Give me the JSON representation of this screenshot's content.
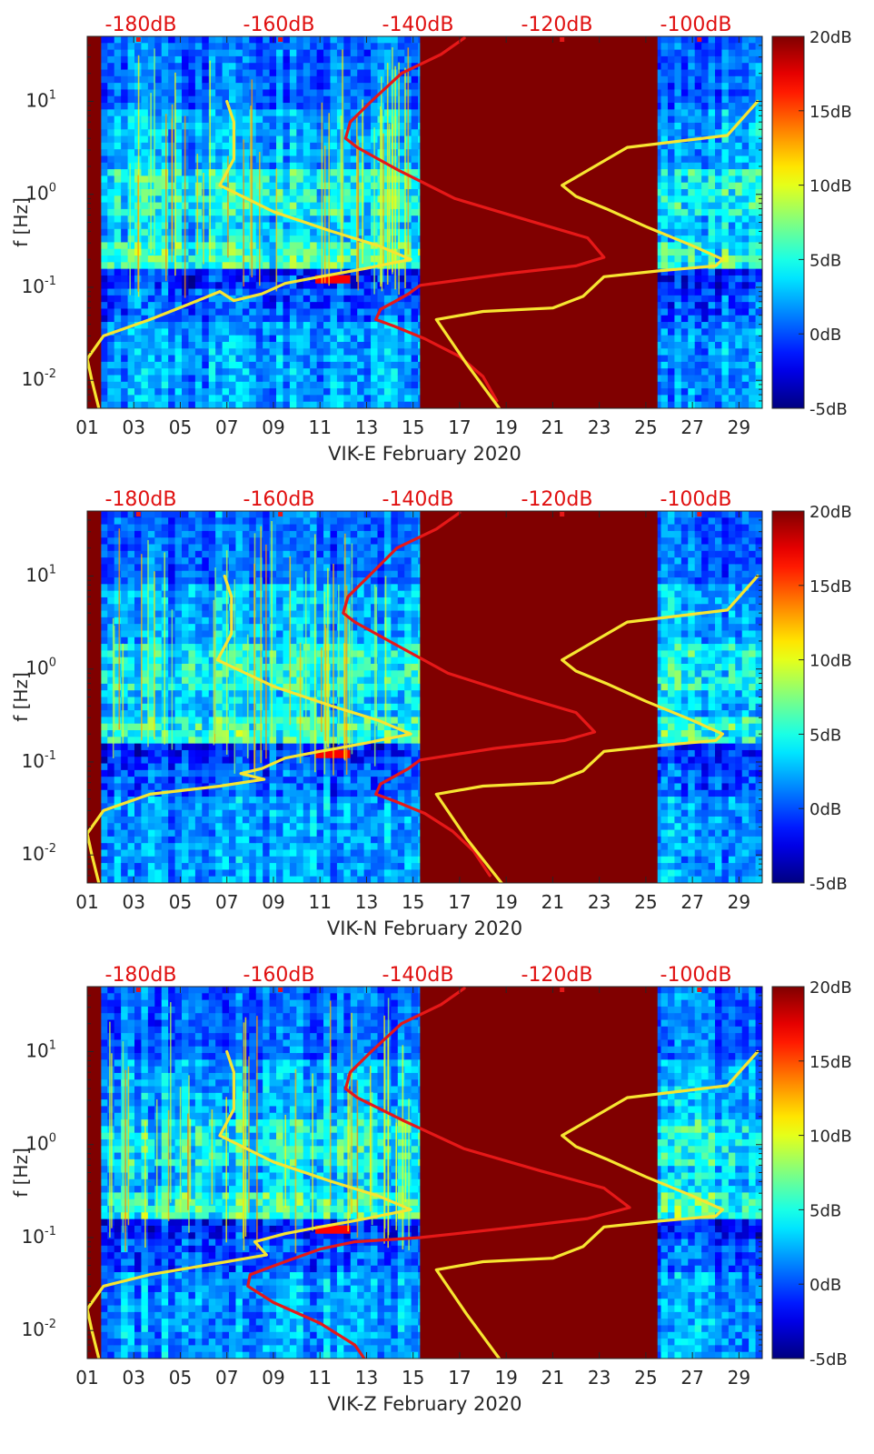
{
  "figure": {
    "panel_count": 3
  },
  "colors": {
    "spectrogram_colormap": "jet",
    "yellow_curve": "#f7e531",
    "red_curve": "#e61818",
    "top_axis_text": "#e01010",
    "saturated_block": "#800000",
    "axis": "#262626"
  },
  "chart_data": [
    {
      "type": "heatmap",
      "title": "",
      "xlabel": "VIK-E February 2020",
      "ylabel": "f [Hz]",
      "x_tick_labels": [
        "01",
        "03",
        "05",
        "07",
        "09",
        "11",
        "13",
        "15",
        "17",
        "19",
        "21",
        "23",
        "25",
        "27",
        "29"
      ],
      "x_tick_days": [
        1,
        3,
        5,
        7,
        9,
        11,
        13,
        15,
        17,
        19,
        21,
        23,
        25,
        27,
        29
      ],
      "xlim": [
        1,
        30
      ],
      "yscale": "log",
      "ylim": [
        0.005,
        50
      ],
      "y_tick_labels": [
        "10^-2",
        "10^-1",
        "10^0",
        "10^1"
      ],
      "y_tick_values": [
        0.01,
        0.1,
        1,
        10
      ],
      "top_axis_labels": [
        "-180dB",
        "-160dB",
        "-140dB",
        "-120dB",
        "-100dB"
      ],
      "colorbar": {
        "labels": [
          "20dB",
          "15dB",
          "10dB",
          "5dB",
          "0dB",
          "-5dB"
        ],
        "values": [
          20,
          15,
          10,
          5,
          0,
          -5
        ],
        "range": [
          -5,
          20
        ],
        "colormap": "jet"
      },
      "saturated_intervals": [
        [
          1.0,
          1.6
        ],
        [
          15.3,
          25.5
        ]
      ],
      "overlay_series": [
        {
          "color": "yellow",
          "points": [
            [
              7.0,
              10
            ],
            [
              7.3,
              6
            ],
            [
              7.3,
              2.4
            ],
            [
              6.7,
              1.25
            ],
            [
              9.0,
              0.65
            ],
            [
              11.5,
              0.4
            ],
            [
              13.5,
              0.28
            ],
            [
              14.9,
              0.2
            ],
            [
              13.0,
              0.16
            ],
            [
              11.0,
              0.13
            ],
            [
              9.5,
              0.11
            ],
            [
              8.5,
              0.085
            ],
            [
              7.3,
              0.072
            ],
            [
              6.7,
              0.09
            ],
            [
              5.5,
              0.068
            ],
            [
              3.7,
              0.045
            ],
            [
              1.7,
              0.03
            ],
            [
              1.0,
              0.017
            ],
            [
              1.2,
              0.01
            ],
            [
              1.5,
              0.005
            ]
          ]
        },
        {
          "color": "red",
          "points": [
            [
              17.2,
              48
            ],
            [
              16.2,
              32
            ],
            [
              14.5,
              20
            ],
            [
              13.2,
              10
            ],
            [
              12.3,
              6
            ],
            [
              12.1,
              4
            ],
            [
              12.6,
              3.2
            ],
            [
              14.4,
              1.8
            ],
            [
              16.8,
              0.9
            ],
            [
              20.0,
              0.52
            ],
            [
              22.5,
              0.34
            ],
            [
              23.2,
              0.21
            ],
            [
              22.0,
              0.17
            ],
            [
              19.0,
              0.14
            ],
            [
              15.3,
              0.105
            ],
            [
              14.8,
              0.085
            ],
            [
              14.2,
              0.07
            ],
            [
              13.6,
              0.058
            ],
            [
              13.4,
              0.045
            ],
            [
              14.2,
              0.038
            ],
            [
              15.5,
              0.028
            ],
            [
              17.0,
              0.018
            ],
            [
              18.0,
              0.011
            ],
            [
              18.6,
              0.006
            ]
          ]
        },
        {
          "color": "yellow",
          "points": [
            [
              18.7,
              0.005
            ],
            [
              17.3,
              0.015
            ],
            [
              16.0,
              0.045
            ],
            [
              18.0,
              0.055
            ],
            [
              21.0,
              0.06
            ],
            [
              22.3,
              0.08
            ],
            [
              23.2,
              0.13
            ],
            [
              25.5,
              0.15
            ],
            [
              28.0,
              0.17
            ],
            [
              28.3,
              0.2
            ],
            [
              27.0,
              0.28
            ],
            [
              25.0,
              0.45
            ],
            [
              23.3,
              0.7
            ],
            [
              22.0,
              0.95
            ],
            [
              21.4,
              1.25
            ],
            [
              24.2,
              3.2
            ],
            [
              28.5,
              4.3
            ],
            [
              29.8,
              10
            ]
          ]
        }
      ]
    },
    {
      "type": "heatmap",
      "title": "",
      "xlabel": "VIK-N February 2020",
      "ylabel": "f [Hz]",
      "x_tick_labels": [
        "01",
        "03",
        "05",
        "07",
        "09",
        "11",
        "13",
        "15",
        "17",
        "19",
        "21",
        "23",
        "25",
        "27",
        "29"
      ],
      "x_tick_days": [
        1,
        3,
        5,
        7,
        9,
        11,
        13,
        15,
        17,
        19,
        21,
        23,
        25,
        27,
        29
      ],
      "xlim": [
        1,
        30
      ],
      "yscale": "log",
      "ylim": [
        0.005,
        50
      ],
      "y_tick_labels": [
        "10^-2",
        "10^-1",
        "10^0",
        "10^1"
      ],
      "y_tick_values": [
        0.01,
        0.1,
        1,
        10
      ],
      "top_axis_labels": [
        "-180dB",
        "-160dB",
        "-140dB",
        "-120dB",
        "-100dB"
      ],
      "colorbar": {
        "labels": [
          "20dB",
          "15dB",
          "10dB",
          "5dB",
          "0dB",
          "-5dB"
        ],
        "values": [
          20,
          15,
          10,
          5,
          0,
          -5
        ],
        "range": [
          -5,
          20
        ],
        "colormap": "jet"
      },
      "saturated_intervals": [
        [
          1.0,
          1.6
        ],
        [
          15.3,
          25.5
        ]
      ],
      "overlay_series": [
        {
          "color": "yellow",
          "points": [
            [
              6.9,
              10
            ],
            [
              7.2,
              6
            ],
            [
              7.2,
              2.4
            ],
            [
              6.6,
              1.25
            ],
            [
              9.0,
              0.65
            ],
            [
              11.5,
              0.4
            ],
            [
              13.5,
              0.28
            ],
            [
              14.9,
              0.2
            ],
            [
              13.0,
              0.16
            ],
            [
              11.0,
              0.13
            ],
            [
              9.5,
              0.11
            ],
            [
              8.5,
              0.085
            ],
            [
              7.6,
              0.075
            ],
            [
              8.6,
              0.065
            ],
            [
              6.7,
              0.055
            ],
            [
              3.7,
              0.045
            ],
            [
              1.7,
              0.03
            ],
            [
              1.0,
              0.017
            ],
            [
              1.2,
              0.01
            ],
            [
              1.5,
              0.005
            ]
          ]
        },
        {
          "color": "red",
          "points": [
            [
              17.0,
              48
            ],
            [
              16.0,
              32
            ],
            [
              14.3,
              20
            ],
            [
              13.1,
              10
            ],
            [
              12.2,
              6
            ],
            [
              12.0,
              4
            ],
            [
              12.5,
              3.2
            ],
            [
              14.3,
              1.8
            ],
            [
              16.5,
              0.9
            ],
            [
              19.5,
              0.52
            ],
            [
              22.0,
              0.34
            ],
            [
              22.8,
              0.21
            ],
            [
              21.5,
              0.17
            ],
            [
              18.5,
              0.14
            ],
            [
              15.3,
              0.105
            ],
            [
              14.8,
              0.085
            ],
            [
              14.2,
              0.07
            ],
            [
              13.6,
              0.058
            ],
            [
              13.4,
              0.045
            ],
            [
              14.2,
              0.038
            ],
            [
              15.5,
              0.028
            ],
            [
              16.7,
              0.018
            ],
            [
              17.6,
              0.011
            ],
            [
              18.3,
              0.006
            ]
          ]
        },
        {
          "color": "yellow",
          "points": [
            [
              18.8,
              0.005
            ],
            [
              17.3,
              0.015
            ],
            [
              16.0,
              0.045
            ],
            [
              18.0,
              0.055
            ],
            [
              21.0,
              0.06
            ],
            [
              22.3,
              0.08
            ],
            [
              23.2,
              0.13
            ],
            [
              25.5,
              0.15
            ],
            [
              28.0,
              0.17
            ],
            [
              28.3,
              0.2
            ],
            [
              27.0,
              0.28
            ],
            [
              25.0,
              0.45
            ],
            [
              23.3,
              0.7
            ],
            [
              22.0,
              0.95
            ],
            [
              21.4,
              1.25
            ],
            [
              24.2,
              3.2
            ],
            [
              28.5,
              4.3
            ],
            [
              29.8,
              10
            ]
          ]
        }
      ]
    },
    {
      "type": "heatmap",
      "title": "",
      "xlabel": "VIK-Z February 2020",
      "ylabel": "f [Hz]",
      "x_tick_labels": [
        "01",
        "03",
        "05",
        "07",
        "09",
        "11",
        "13",
        "15",
        "17",
        "19",
        "21",
        "23",
        "25",
        "27",
        "29"
      ],
      "x_tick_days": [
        1,
        3,
        5,
        7,
        9,
        11,
        13,
        15,
        17,
        19,
        21,
        23,
        25,
        27,
        29
      ],
      "xlim": [
        1,
        30
      ],
      "yscale": "log",
      "ylim": [
        0.005,
        50
      ],
      "y_tick_labels": [
        "10^-2",
        "10^-1",
        "10^0",
        "10^1"
      ],
      "y_tick_values": [
        0.01,
        0.1,
        1,
        10
      ],
      "top_axis_labels": [
        "-180dB",
        "-160dB",
        "-140dB",
        "-120dB",
        "-100dB"
      ],
      "colorbar": {
        "labels": [
          "20dB",
          "15dB",
          "10dB",
          "5dB",
          "0dB",
          "-5dB"
        ],
        "values": [
          20,
          15,
          10,
          5,
          0,
          -5
        ],
        "range": [
          -5,
          20
        ],
        "colormap": "jet"
      },
      "saturated_intervals": [
        [
          1.0,
          1.6
        ],
        [
          15.3,
          25.5
        ]
      ],
      "overlay_series": [
        {
          "color": "yellow",
          "points": [
            [
              7.0,
              10
            ],
            [
              7.3,
              6
            ],
            [
              7.3,
              2.4
            ],
            [
              6.7,
              1.25
            ],
            [
              9.0,
              0.65
            ],
            [
              11.5,
              0.4
            ],
            [
              13.5,
              0.28
            ],
            [
              14.9,
              0.2
            ],
            [
              13.0,
              0.16
            ],
            [
              11.0,
              0.13
            ],
            [
              9.5,
              0.11
            ],
            [
              8.2,
              0.09
            ],
            [
              8.7,
              0.065
            ],
            [
              7.0,
              0.055
            ],
            [
              3.7,
              0.04
            ],
            [
              1.7,
              0.03
            ],
            [
              1.0,
              0.017
            ],
            [
              1.2,
              0.01
            ],
            [
              1.5,
              0.005
            ]
          ]
        },
        {
          "color": "red",
          "points": [
            [
              17.2,
              48
            ],
            [
              16.2,
              32
            ],
            [
              14.5,
              20
            ],
            [
              13.2,
              10
            ],
            [
              12.3,
              6
            ],
            [
              12.1,
              4
            ],
            [
              12.6,
              3.2
            ],
            [
              14.6,
              1.8
            ],
            [
              17.2,
              0.9
            ],
            [
              20.5,
              0.52
            ],
            [
              23.2,
              0.34
            ],
            [
              24.3,
              0.21
            ],
            [
              22.5,
              0.16
            ],
            [
              19.5,
              0.13
            ],
            [
              15.3,
              0.1
            ],
            [
              12.5,
              0.09
            ],
            [
              11.0,
              0.075
            ],
            [
              9.5,
              0.055
            ],
            [
              8.0,
              0.04
            ],
            [
              7.9,
              0.03
            ],
            [
              9.0,
              0.02
            ],
            [
              11.0,
              0.012
            ],
            [
              12.5,
              0.007
            ],
            [
              12.9,
              0.005
            ]
          ]
        },
        {
          "color": "yellow",
          "points": [
            [
              18.7,
              0.005
            ],
            [
              17.3,
              0.015
            ],
            [
              16.0,
              0.045
            ],
            [
              18.0,
              0.055
            ],
            [
              21.0,
              0.06
            ],
            [
              22.3,
              0.08
            ],
            [
              23.2,
              0.13
            ],
            [
              25.5,
              0.15
            ],
            [
              28.0,
              0.17
            ],
            [
              28.3,
              0.2
            ],
            [
              27.0,
              0.28
            ],
            [
              25.0,
              0.45
            ],
            [
              23.3,
              0.7
            ],
            [
              22.0,
              0.95
            ],
            [
              21.4,
              1.25
            ],
            [
              24.2,
              3.2
            ],
            [
              28.5,
              4.3
            ],
            [
              29.8,
              10
            ]
          ]
        }
      ]
    }
  ]
}
